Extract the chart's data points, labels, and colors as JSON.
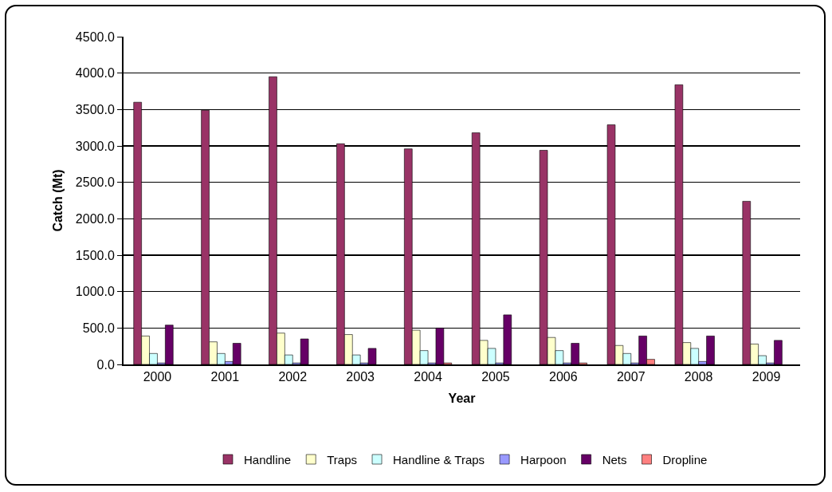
{
  "chart_data": {
    "type": "bar",
    "xlabel": "Year",
    "ylabel": "Catch (Mt)",
    "categories": [
      "2000",
      "2001",
      "2002",
      "2003",
      "2004",
      "2005",
      "2006",
      "2007",
      "2008",
      "2009"
    ],
    "series": [
      {
        "name": "Handline",
        "color": "#993366",
        "values": [
          3600,
          3490,
          3950,
          3030,
          2960,
          3180,
          2940,
          3290,
          3840,
          2240
        ]
      },
      {
        "name": "Traps",
        "color": "#ffffcc",
        "values": [
          390,
          310,
          430,
          410,
          470,
          330,
          370,
          260,
          300,
          280
        ]
      },
      {
        "name": "Handline & Traps",
        "color": "#ccffff",
        "values": [
          150,
          150,
          130,
          130,
          190,
          220,
          190,
          150,
          220,
          120
        ]
      },
      {
        "name": "Harpoon",
        "color": "#9999ff",
        "values": [
          20,
          40,
          20,
          20,
          20,
          20,
          20,
          20,
          40,
          20
        ]
      },
      {
        "name": "Nets",
        "color": "#660066",
        "values": [
          540,
          290,
          350,
          220,
          500,
          680,
          290,
          390,
          390,
          330
        ]
      },
      {
        "name": "Dropline",
        "color": "#ff8080",
        "values": [
          null,
          null,
          null,
          null,
          20,
          null,
          20,
          70,
          null,
          null
        ]
      }
    ],
    "ylim": [
      0,
      4500
    ],
    "yticks": [
      {
        "value": 0,
        "label": "0.0"
      },
      {
        "value": 500,
        "label": "500.0"
      },
      {
        "value": 1000,
        "label": "1000.0"
      },
      {
        "value": 1500,
        "label": "1500.0"
      },
      {
        "value": 2000,
        "label": "2000.0"
      },
      {
        "value": 2500,
        "label": "2500.0"
      },
      {
        "value": 3000,
        "label": "3000.0"
      },
      {
        "value": 3500,
        "label": "3500.0"
      },
      {
        "value": 4000,
        "label": "4000.0"
      },
      {
        "value": 4500,
        "label": "4500.0"
      }
    ],
    "grid": "y",
    "legend": "bottom"
  }
}
